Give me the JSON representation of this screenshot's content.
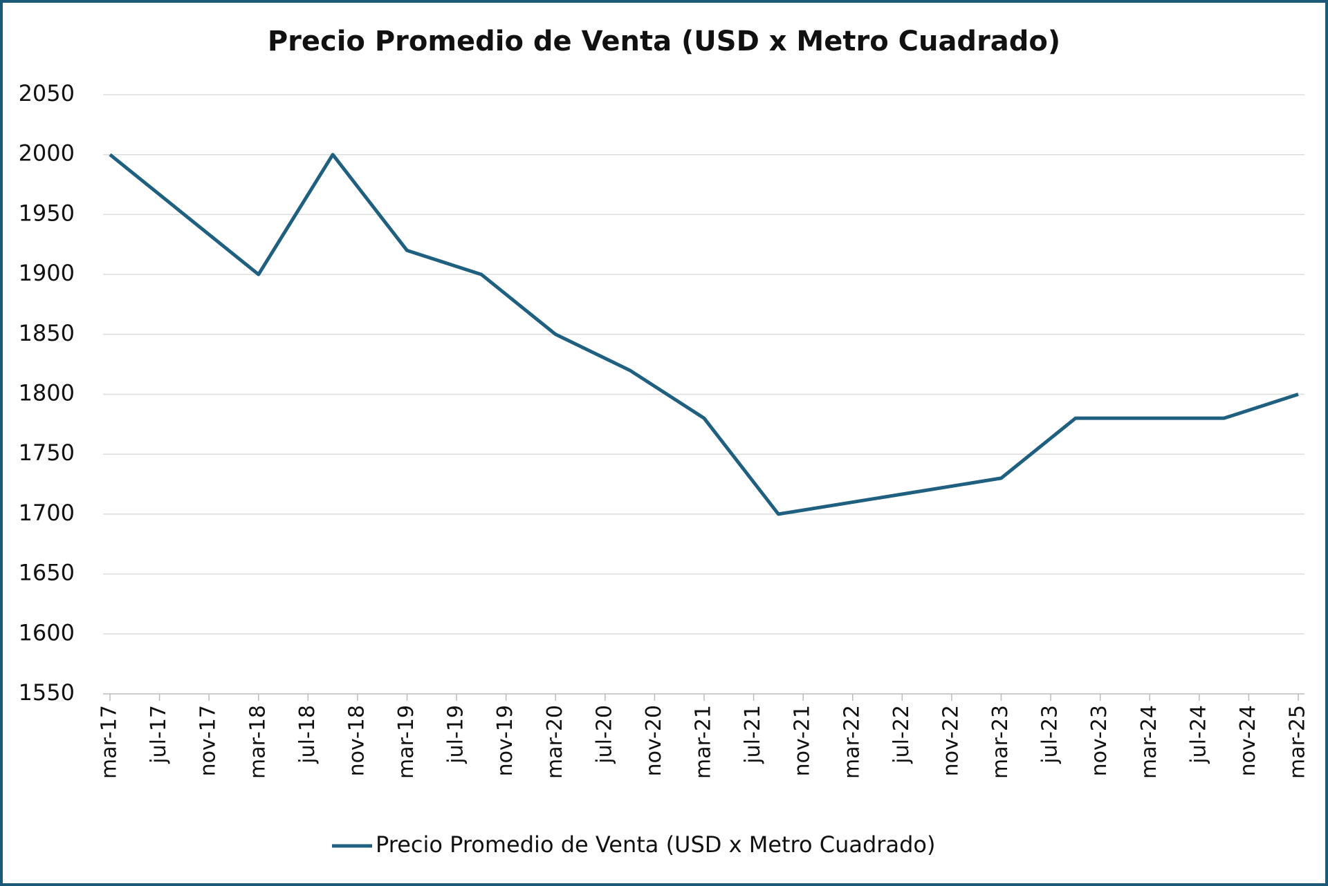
{
  "chart_data": {
    "type": "line",
    "title": "Precio Promedio de Venta (USD x Metro Cuadrado)",
    "x": [
      0,
      6,
      12,
      18,
      24,
      30,
      36,
      42,
      48,
      54,
      60,
      66,
      72,
      78,
      84,
      90,
      96
    ],
    "series": [
      {
        "name": "Precio Promedio de Venta (USD x Metro Cuadrado)",
        "color": "#1f5f7f",
        "values": [
          2000,
          1950,
          1900,
          2000,
          1920,
          1900,
          1850,
          1820,
          1780,
          1700,
          1710,
          1720,
          1730,
          1780,
          1780,
          1780,
          1800
        ]
      }
    ],
    "xlim": [
      0,
      96
    ],
    "xticks": [
      {
        "value": 0,
        "label": "mar-17"
      },
      {
        "value": 4,
        "label": "jul-17"
      },
      {
        "value": 8,
        "label": "nov-17"
      },
      {
        "value": 12,
        "label": "mar-18"
      },
      {
        "value": 16,
        "label": "jul-18"
      },
      {
        "value": 20,
        "label": "nov-18"
      },
      {
        "value": 24,
        "label": "mar-19"
      },
      {
        "value": 28,
        "label": "jul-19"
      },
      {
        "value": 32,
        "label": "nov-19"
      },
      {
        "value": 36,
        "label": "mar-20"
      },
      {
        "value": 40,
        "label": "jul-20"
      },
      {
        "value": 44,
        "label": "nov-20"
      },
      {
        "value": 48,
        "label": "mar-21"
      },
      {
        "value": 52,
        "label": "jul-21"
      },
      {
        "value": 56,
        "label": "nov-21"
      },
      {
        "value": 60,
        "label": "mar-22"
      },
      {
        "value": 64,
        "label": "jul-22"
      },
      {
        "value": 68,
        "label": "nov-22"
      },
      {
        "value": 72,
        "label": "mar-23"
      },
      {
        "value": 76,
        "label": "jul-23"
      },
      {
        "value": 80,
        "label": "nov-23"
      },
      {
        "value": 84,
        "label": "mar-24"
      },
      {
        "value": 88,
        "label": "jul-24"
      },
      {
        "value": 92,
        "label": "nov-24"
      },
      {
        "value": 96,
        "label": "mar-25"
      }
    ],
    "ylim": [
      1550,
      2050
    ],
    "yticks": [
      1550,
      1600,
      1650,
      1700,
      1750,
      1800,
      1850,
      1900,
      1950,
      2000,
      2050
    ],
    "grid": true,
    "legend": "bottom"
  }
}
